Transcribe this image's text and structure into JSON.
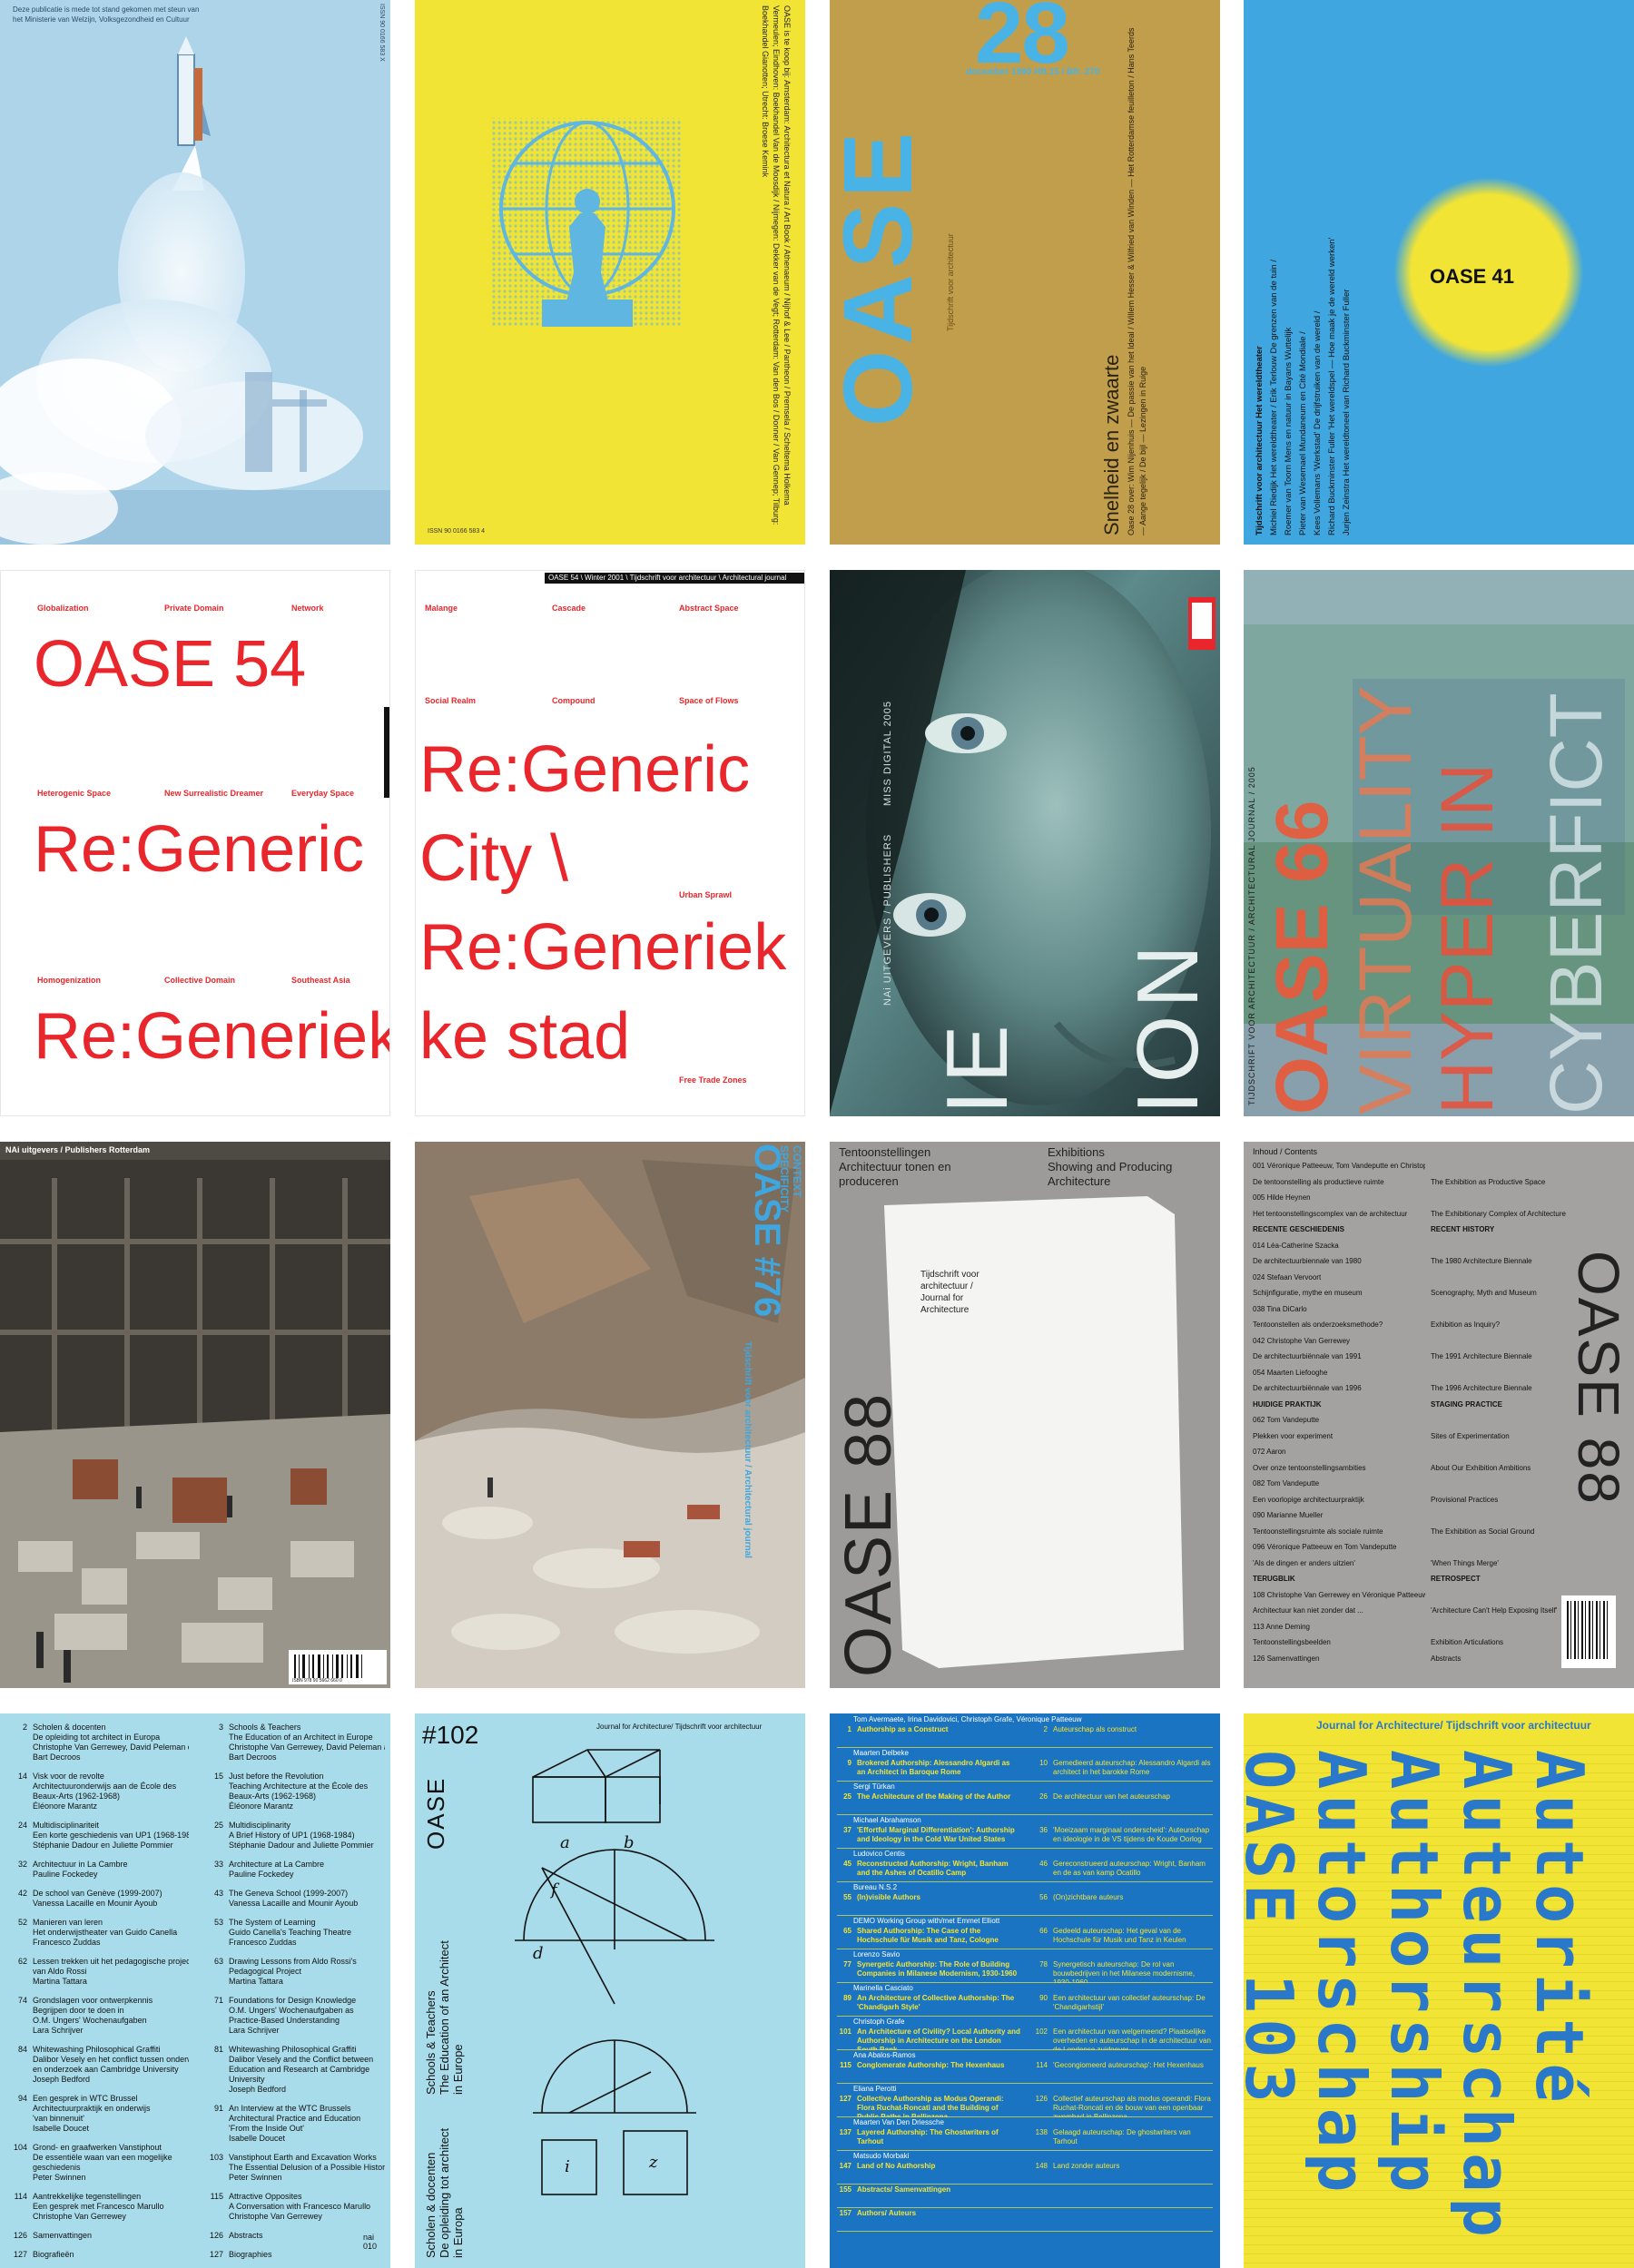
{
  "colors": {
    "sky_blue": "#aed4ea",
    "yellow": "#f2e435",
    "ochre": "#c19e4c",
    "cyan": "#3fa6df",
    "red": "#e8262b",
    "gray": "#9c9b99",
    "light_blue": "#a8dcea",
    "blue": "#1b74c1"
  },
  "c1": {
    "credit_lines": [
      "Deze publicatie is mede tot stand gekomen met steun van",
      "het Ministerie van Welzijn, Volksgezondheid en Cultuur"
    ],
    "spine_text": "ISSN 90 0166 583 X"
  },
  "c2": {
    "spine_text": "ISSN 90 0166 583 4",
    "side_text": "OASE is te koop bij: Amsterdam: Architectura et Natura / Art Book / Athenaeum / Nijhof & Lee / Pantheon / Premsela / Scheltema Holkema Vermeulen; Eindhoven: Boekhandel Van de Moosdijk / Nijmegen: Dekker van de Vegt; Rotterdam: Van den Bos / Donner / Van Gennep; Tilburg: Boekhandel Gianotten; Utrecht: Broese Kemink"
  },
  "c3": {
    "number": "28",
    "date_line": "december 1990  Hft.15 / Bfr. 270",
    "logo": "OASE",
    "subtitle_vert": "Tijdschrift voor architectuur",
    "theme": "Snelheid en zwaarte",
    "contents_vert": "Oase 28 over: Wim Nijenhuis — De passie van het Ideal / Willem Hesser & Wilfried van Winden — Het Rotterdamse feuilleton / Hans Teerds — Aange tegelijk / De bijl — Lezingen in Ruige"
  },
  "c4": {
    "title": "OASE 41",
    "lines_vert": [
      "Tijdschrift voor architectuur  Het wereldtheater",
      "Michiel Riedijk Het wereldtheater / Erik Terlouw De grenzen van de tuin /",
      "Roemer van Toorn Mens en natuur in Bayans Wuttelijk",
      "Pieter van Wesemael Mundaneum en Cité Mondiale /",
      "Kees Vollemans 'Werkstad' De drijfstruiken van de wereld /",
      "Richard Buckminster Fuller 'Het wereldspel — Hoe maak je de wereld werken'",
      "Jurjen Zeinstra Het wereldtoneel van Richard Buckminster Fuller"
    ]
  },
  "c5": {
    "labels": [
      "Globalization",
      "Private Domain",
      "Network",
      "Heterogenic Space",
      "New Surrealistic Dreamer",
      "Everyday Space",
      "Homogenization",
      "Collective Domain",
      "Southeast Asia"
    ],
    "title": "OASE 54",
    "line1": "Re:Generic",
    "line2": "Re:Generiek"
  },
  "c6": {
    "header": "OASE 54 \\ Winter 2001 \\ Tijdschrift voor architectuur \\ Architectural journal",
    "labels": [
      "Malange",
      "Cascade",
      "Abstract Space",
      "Social Realm",
      "Compound",
      "Space of Flows",
      "Urban Sprawl",
      "Free Trade Zones"
    ],
    "line1": "Re:Generic",
    "line2": "City \\",
    "line3": "Re:Generiek",
    "line4": "ke stad"
  },
  "c7": {
    "vert_publisher": "NAi UITGEVERS / PUBLISHERS",
    "vert_title": "MISS DIGITAL 2005",
    "big_letters": "ION",
    "big_left": "IE"
  },
  "c8": {
    "vert_header": "TIJDSCHRIFT VOOR ARCHITECTUUR / ARCHITECTURAL JOURNAL / 2005",
    "lines": [
      "OASE 66",
      "VIRTUALITY",
      "HYPER IN",
      "CYBERFICT"
    ]
  },
  "c9": {
    "header": "NAi uitgevers / Publishers Rotterdam",
    "barcode_text": "ISBN 978 90 5662 660 0"
  },
  "c10": {
    "title": "OASE #76",
    "words": [
      "CONTEXT",
      "SPECIFICITY"
    ],
    "subtitle": "Tijdschrift voor architectuur / Architectural journal"
  },
  "c11": {
    "left_title": "Tentoonstellingen\nArchitectuur tonen en\nproduceren",
    "right_title": "Exhibitions\nShowing and Producing\nArchitecture",
    "logo": "OASE 88",
    "sub": "Tijdschrift voor\narchitectuur /\nJournal for\nArchitecture"
  },
  "c12": {
    "header": "Inhoud / Contents",
    "logo": "OASE 88",
    "rows": [
      [
        "001  Véronique Patteeuw, Tom Vandeputte en Christophe Van Gerrewey",
        ""
      ],
      [
        "De tentoonstelling als productieve ruimte",
        "The Exhibition as Productive Space"
      ],
      [
        "005  Hilde Heynen",
        ""
      ],
      [
        "Het tentoonstellingscomplex van de architectuur",
        "The Exhibitionary Complex of Architecture"
      ],
      [
        "RECENTE GESCHIEDENIS",
        "RECENT HISTORY"
      ],
      [
        "014  Léa-Catherine Szacka",
        ""
      ],
      [
        "De architectuurbiennale van 1980",
        "The 1980 Architecture Biennale"
      ],
      [
        "024  Stefaan Vervoort",
        ""
      ],
      [
        "Schijnfiguratie, mythe en museum",
        "Scenography, Myth and Museum"
      ],
      [
        "038  Tina DiCarlo",
        ""
      ],
      [
        "Tentoonstellen als onderzoeksmethode?",
        "Exhibition as Inquiry?"
      ],
      [
        "042  Christophe Van Gerrewey",
        ""
      ],
      [
        "De architectuurbiënnale van 1991",
        "The 1991 Architecture Biennale"
      ],
      [
        "054  Maarten Liefooghe",
        ""
      ],
      [
        "De architectuurbiënnale van 1996",
        "The 1996 Architecture Biennale"
      ],
      [
        "HUIDIGE PRAKTIJK",
        "STAGING PRACTICE"
      ],
      [
        "062  Tom Vandeputte",
        ""
      ],
      [
        "Plekken voor experiment",
        "Sites of Experimentation"
      ],
      [
        "072  Aaron",
        ""
      ],
      [
        "Over onze tentoonstellingsambities",
        "About Our Exhibition Ambitions"
      ],
      [
        "082  Tom Vandeputte",
        ""
      ],
      [
        "Een voorlopige architectuurpraktijk",
        "Provisional Practices"
      ],
      [
        "090  Marianne Mueller",
        ""
      ],
      [
        "Tentoonstellingsruimte als sociale ruimte",
        "The Exhibition as Social Ground"
      ],
      [
        "096  Véronique Patteeuw en Tom Vandeputte",
        ""
      ],
      [
        "'Als de dingen er anders uitzien'",
        "'When Things Merge'"
      ],
      [
        "TERUGBLIK",
        "RETROSPECT"
      ],
      [
        "108  Christophe Van Gerrewey en Véronique Patteeuw",
        ""
      ],
      [
        "Architectuur kan niet zonder dat ...",
        "'Architecture Can't Help Exposing Itself'"
      ],
      [
        "113  Anne Deming",
        ""
      ],
      [
        "Tentoonstellingsbeelden",
        "Exhibition Articulations"
      ],
      [
        "126  Samenvattingen",
        "Abstracts"
      ]
    ]
  },
  "c13": {
    "entries_left": [
      [
        "2",
        "Scholen & docenten",
        "De opleiding tot architect in Europa",
        "Christophe Van Gerrewey, David Peleman en",
        "Bart Decroos"
      ],
      [
        "14",
        "Visk voor de revolte",
        "Architectuuronderwijs aan de École des",
        "Beaux-Arts (1962-1968)",
        "Éléonore Marantz"
      ],
      [
        "24",
        "Multidisciplinariteit",
        "Een korte geschiedenis van UP1 (1968-1984)",
        "Stéphanie Dadour en Juliette Pommier"
      ],
      [
        "32",
        "Architectuur in La Cambre",
        "Pauline Fockedey"
      ],
      [
        "42",
        "De school van Genève (1999-2007)",
        "Vanessa Lacaille en Mounir Ayoub"
      ],
      [
        "52",
        "Manieren van leren",
        "Het onderwijstheater van Guido Canella",
        "Francesco Zuddas"
      ],
      [
        "62",
        "Lessen trekken uit het pedagogische project",
        "van Aldo Rossi",
        "Martina Tattara"
      ],
      [
        "74",
        "Grondslagen voor ontwerpkennis",
        "Begrijpen door te doen in",
        "O.M. Ungers' Wochenaufgaben",
        "Lara Schrijver"
      ],
      [
        "84",
        "Whitewashing Philosophical Graffiti",
        "Dalibor Vesely en het conflict tussen onderwijs",
        "en onderzoek aan Cambridge University",
        "Joseph Bedford"
      ],
      [
        "94",
        "Een gesprek in WTC Brussel",
        "Architectuurpraktijk en onderwijs",
        "'van binnenuit'",
        "Isabelle Doucet"
      ],
      [
        "104",
        "Grond- en graafwerken Vanstiphout",
        "De essentiële waan van een mogelijke",
        "geschiedenis",
        "Peter Swinnen"
      ],
      [
        "114",
        "Aantrekkelijke tegenstellingen",
        "Een gesprek met Francesco Marullo",
        "Christophe Van Gerrewey"
      ],
      [
        "126",
        "Samenvattingen"
      ],
      [
        "127",
        "Biografieën"
      ]
    ],
    "entries_right": [
      [
        "3",
        "Schools & Teachers",
        "The Education of an Architect in Europe",
        "Christophe Van Gerrewey, David Peleman and",
        "Bart Decroos"
      ],
      [
        "15",
        "Just before the Revolution",
        "Teaching Architecture at the École des",
        "Beaux-Arts (1962-1968)",
        "Éléonore Marantz"
      ],
      [
        "25",
        "Multidisciplinarity",
        "A Brief History of UP1 (1968-1984)",
        "Stéphanie Dadour and Juliette Pommier"
      ],
      [
        "33",
        "Architecture at La Cambre",
        "Pauline Fockedey"
      ],
      [
        "43",
        "The Geneva School (1999-2007)",
        "Vanessa Lacaille and Mounir Ayoub"
      ],
      [
        "53",
        "The System of Learning",
        "Guido Canella's Teaching Theatre",
        "Francesco Zuddas"
      ],
      [
        "63",
        "Drawing Lessons from Aldo Rossi's",
        "Pedagogical Project",
        "Martina Tattara"
      ],
      [
        "71",
        "Foundations for Design Knowledge",
        "O.M. Ungers' Wochenaufgaben as",
        "Practice-Based Understanding",
        "Lara Schrijver"
      ],
      [
        "81",
        "Whitewashing Philosophical Graffiti",
        "Dalibor Vesely and the Conflict between",
        "Education and Research at Cambridge",
        "University",
        "Joseph Bedford"
      ],
      [
        "91",
        "An Interview at the WTC Brussels",
        "Architectural Practice and Education",
        "'From the Inside Out'",
        "Isabelle Doucet"
      ],
      [
        "103",
        "Vanstiphout Earth and Excavation Works",
        "The Essential Delusion of a Possible History",
        "Peter Swinnen"
      ],
      [
        "115",
        "Attractive Opposites",
        "A Conversation with Francesco Marullo",
        "Christophe Van Gerrewey"
      ],
      [
        "126",
        "Abstracts"
      ],
      [
        "127",
        "Biographies"
      ]
    ],
    "corner": "nai\n010"
  },
  "c14": {
    "number": "#102",
    "header": "Journal for Architecture/ Tijdschrift voor architectuur",
    "logo": "OASE",
    "en_title": "Schools & Teachers\nThe Education of an Architect\nin Europe",
    "nl_title": "Scholen & docenten\nDe opleiding tot architect\nin Europa",
    "diagram_letters": [
      "a",
      "b",
      "d",
      "f",
      "i",
      "z"
    ]
  },
  "c15": {
    "rows": [
      [
        "",
        "Tom Avermaete, Irina Davidovici, Christoph Grafe, Véronique Patteeuw",
        "",
        ""
      ],
      [
        "1",
        "Authorship as a Construct",
        "2",
        "Auteurschap als construct"
      ],
      [
        "",
        "Maarten Delbeke",
        "",
        ""
      ],
      [
        "9",
        "Brokered Authorship: Alessandro Algardi as an Architect in Baroque Rome",
        "10",
        "Gemedieerd auteurschap: Alessandro Algardi als architect in het barokke Rome"
      ],
      [
        "",
        "Sergi Türkan",
        "",
        ""
      ],
      [
        "25",
        "The Architecture of the Making of the Author",
        "26",
        "De architectuur van het auteurschap"
      ],
      [
        "",
        "Michael Abrahamson",
        "",
        ""
      ],
      [
        "37",
        "'Effortful Marginal Differentiation': Authorship and Ideology in the Cold War United States",
        "36",
        "'Moeizaam marginaal onderscheid': Auteurschap en ideologie in de VS tijdens de Koude Oorlog"
      ],
      [
        "",
        "Ludovico Centis",
        "",
        ""
      ],
      [
        "45",
        "Reconstructed Authorship: Wright, Banham and the Ashes of Ocatillo Camp",
        "46",
        "Gereconstrueerd auteurschap: Wright, Banham en de as van kamp Ocatillo"
      ],
      [
        "",
        "Bureau N.S.2",
        "",
        ""
      ],
      [
        "55",
        "(In)visible Authors",
        "56",
        "(On)zichtbare auteurs"
      ],
      [
        "",
        "DEMO Working Group with/met Emmet Elliott",
        "",
        ""
      ],
      [
        "65",
        "Shared Authorship: The Case of the Hochschule für Musik and Tanz, Cologne",
        "66",
        "Gedeeld auteurschap: Het geval van de Hochschule für Musik und Tanz in Keulen"
      ],
      [
        "",
        "Lorenzo Savio",
        "",
        ""
      ],
      [
        "77",
        "Synergetic Authorship: The Role of Building Companies in Milanese Modernism, 1930-1960",
        "78",
        "Synergetisch auteurschap: De rol van bouwbedrijven in het Milanese modernisme, 1930-1960"
      ],
      [
        "",
        "Marinella Casciato",
        "",
        ""
      ],
      [
        "89",
        "An Architecture of Collective Authorship: The 'Chandigarh Style'",
        "90",
        "Een architectuur van collectief auteurschap: De 'Chandigarhstijl'"
      ],
      [
        "",
        "Christoph Grafe",
        "",
        ""
      ],
      [
        "101",
        "An Architecture of Civility? Local Authority and Authorship in Architecture on the London South Bank",
        "102",
        "Een architectuur van welgemeend? Plaatselijke overheden en auteurschap in de architectuur van de Londense zuidoever"
      ],
      [
        "",
        "Ana Abalos-Ramos",
        "",
        ""
      ],
      [
        "115",
        "Conglomerate Authorship: The Hexenhaus",
        "114",
        "'Gecongiomeerd auteurschap': Het Hexenhaus"
      ],
      [
        "",
        "Eliana Perotti",
        "",
        ""
      ],
      [
        "127",
        "Collective Authorship as Modus Operandi: Flora Ruchat-Roncati and the Building of Public Baths in Bellinzona",
        "126",
        "Collectief auteurschap als modus operandi: Flora Ruchat-Roncati en de bouw van een openbaar zwembad in Bellinzona"
      ],
      [
        "",
        "Maarten Van Den Driessche",
        "",
        ""
      ],
      [
        "137",
        "Layered Authorship: The Ghostwriters of Tarhout",
        "138",
        "Gelaagd auteurschap: De ghostwriters van Tarhout"
      ],
      [
        "",
        "Matsudo Morbaki",
        "",
        ""
      ],
      [
        "147",
        "Land of No Authorship",
        "148",
        "Land zonder auteurs"
      ],
      [
        "155",
        "Abstracts/ Samenvattingen",
        "",
        ""
      ],
      [
        "157",
        "Authors/ Auteurs",
        "",
        ""
      ]
    ]
  },
  "c16": {
    "header": "Journal for Architecture/ Tijdschrift voor architectuur",
    "columns": [
      "OASE 103",
      "Autorschap",
      "Authorship",
      "Auteurschap",
      "Autorité"
    ]
  }
}
